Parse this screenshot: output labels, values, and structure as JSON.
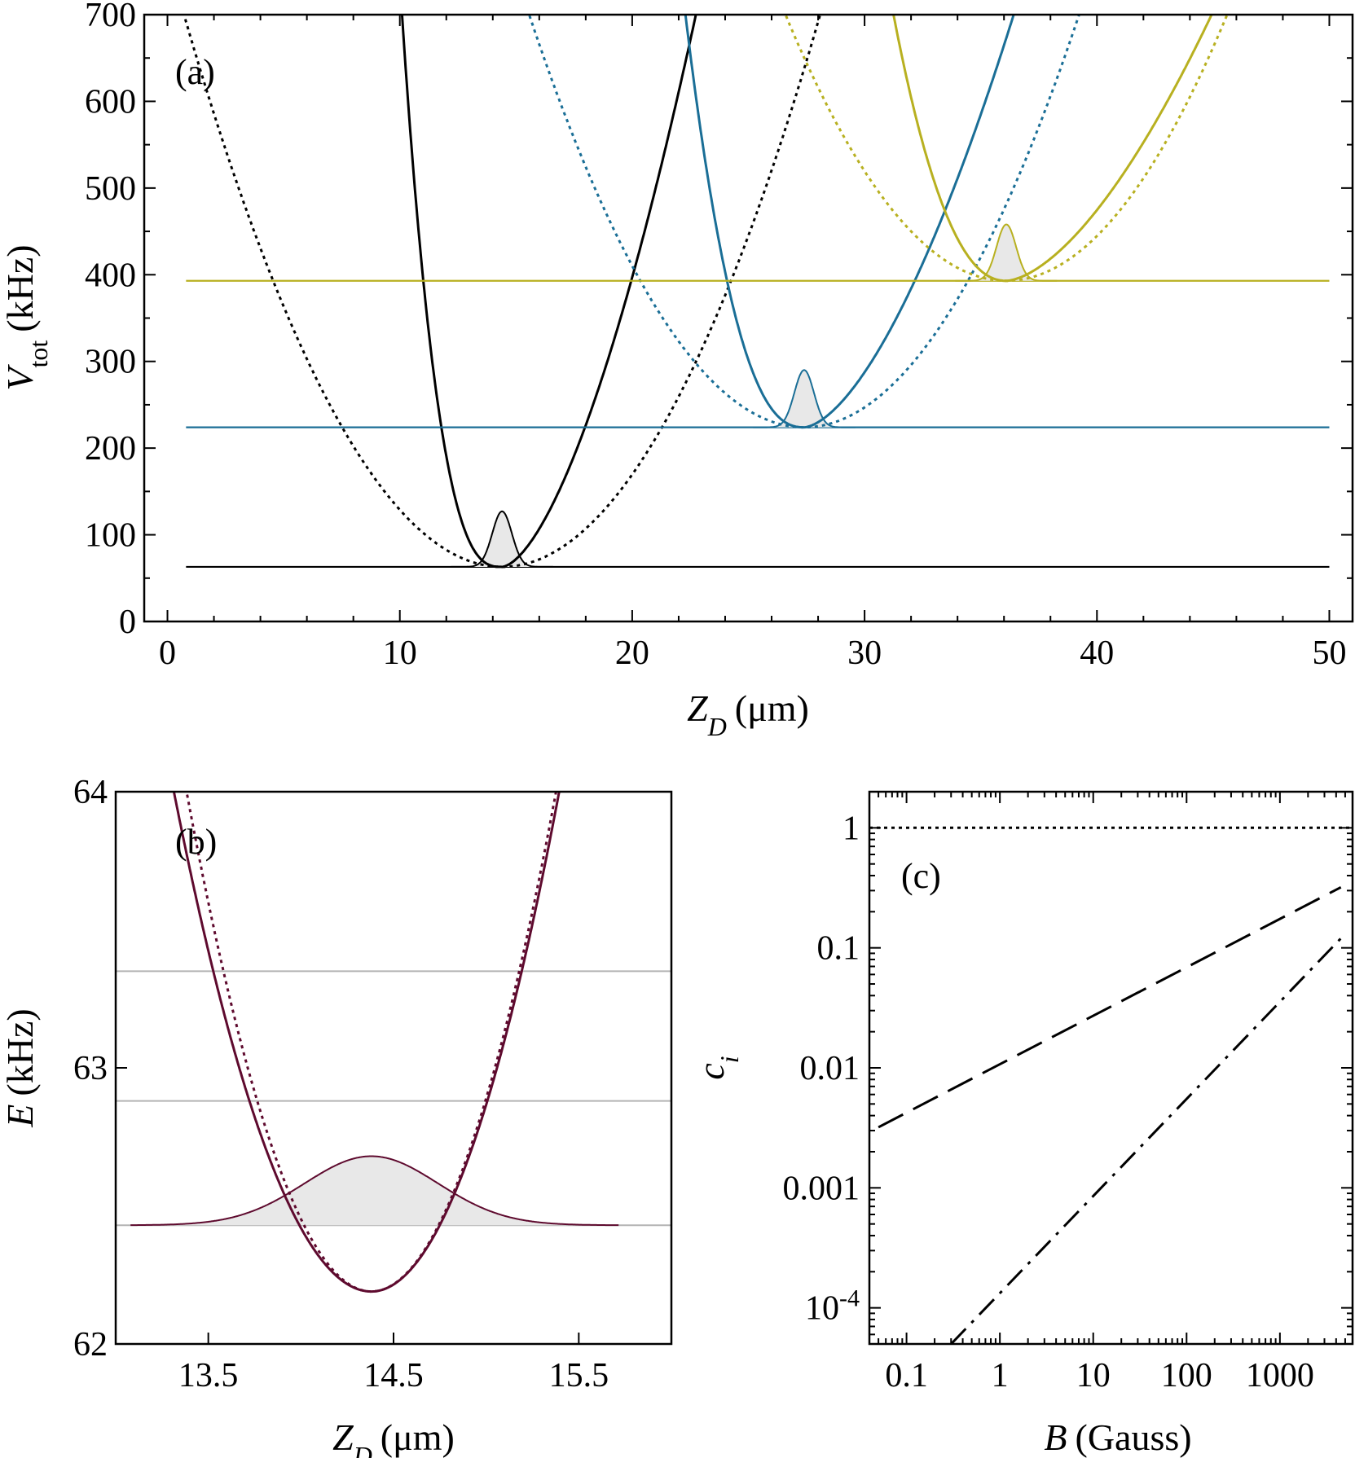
{
  "colors": {
    "black": "#000000",
    "blue": "#1a6e96",
    "yellow": "#b8b020",
    "maroon": "#5e0a2e",
    "gray_line": "#b4b4b4",
    "fill": "#e8e8e8"
  },
  "chart_data": [
    {
      "id": "a",
      "type": "line",
      "panel_label": "(a)",
      "xlabel_main": "Z",
      "xlabel_sub": "D",
      "xlabel_unit": "(μm)",
      "ylabel_main": "V",
      "ylabel_sub": "tot",
      "ylabel_unit": "(kHz)",
      "xlim": [
        -1,
        51
      ],
      "ylim": [
        0,
        700
      ],
      "xticks": [
        0,
        10,
        20,
        30,
        40,
        50
      ],
      "yticks": [
        0,
        100,
        200,
        300,
        400,
        500,
        600,
        700
      ],
      "series": [
        {
          "name": "black",
          "color": "#000000",
          "z0": 14.4,
          "vmin": 63,
          "k_dotted": 3.4,
          "a_right": 20.5,
          "p_right": 1.62,
          "a_left": 11.5,
          "p_left": 2.75,
          "level": 63,
          "peak": 127
        },
        {
          "name": "blue",
          "color": "#1a6e96",
          "z0": 27.4,
          "vmin": 224,
          "k_dotted": 3.4,
          "a_right": 13.5,
          "p_right": 1.62,
          "a_left": 9.5,
          "p_left": 2.4,
          "level": 224,
          "peak": 290
        },
        {
          "name": "yellow",
          "color": "#b8b020",
          "z0": 36.1,
          "vmin": 393,
          "k_dotted": 3.4,
          "a_right": 9.0,
          "p_right": 1.62,
          "a_left": 9.5,
          "p_left": 2.2,
          "level": 393,
          "peak": 458
        }
      ]
    },
    {
      "id": "b",
      "type": "line",
      "panel_label": "(b)",
      "xlabel_main": "Z",
      "xlabel_sub": "D",
      "xlabel_unit": "(μm)",
      "ylabel_main": "E",
      "ylabel_unit": "(kHz)",
      "xlim": [
        13.0,
        16.0
      ],
      "ylim": [
        62,
        64
      ],
      "xtick_labels": [
        "13.5",
        "14.5",
        "15.5"
      ],
      "xticks": [
        13.5,
        14.5,
        15.5
      ],
      "yticks": [
        62,
        63,
        64
      ],
      "x0": 14.38,
      "emin": 62.19,
      "k_solid": 1.66,
      "k_dotted": 1.82,
      "levels": [
        62.43,
        62.88,
        63.35
      ],
      "psi_peak": 62.68,
      "color": "#5e0a2e"
    },
    {
      "id": "c",
      "type": "line",
      "panel_label": "(c)",
      "xlabel_main": "B",
      "xlabel_unit": "(Gauss)",
      "ylabel_main": "c",
      "ylabel_sub": "i",
      "xscale": "log",
      "yscale": "log",
      "xlim": [
        0.04,
        6000
      ],
      "ylim": [
        5e-05,
        2
      ],
      "xtick_labels": [
        "0.1",
        "1",
        "10",
        "100",
        "1000"
      ],
      "xticks": [
        0.1,
        1,
        10,
        100,
        1000
      ],
      "ytick_labels": [
        "1",
        "0.1",
        "0.01",
        "0.001"
      ],
      "yticks": [
        1,
        0.1,
        0.01,
        0.001
      ],
      "ytick_power": {
        "value": 0.0001,
        "base": "10",
        "exponent": "-4"
      },
      "series": [
        {
          "name": "dotted",
          "points": [
            [
              0.04,
              1
            ],
            [
              6000,
              1
            ]
          ]
        },
        {
          "name": "dashed",
          "points": [
            [
              0.05,
              0.0032
            ],
            [
              4500,
              0.32
            ]
          ]
        },
        {
          "name": "dash-dot",
          "points": [
            [
              0.3,
              5e-05
            ],
            [
              4500,
              0.12
            ]
          ]
        }
      ]
    }
  ]
}
